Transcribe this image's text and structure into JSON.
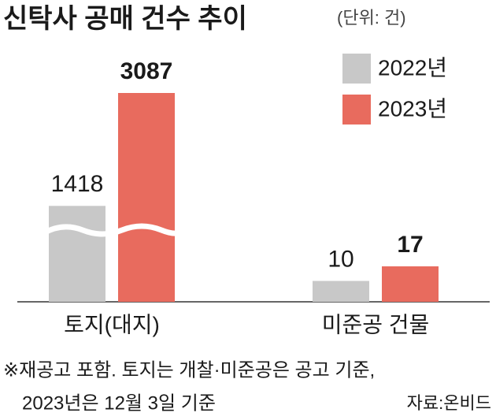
{
  "chart_data": {
    "type": "bar",
    "title": "신탁사 공매 건수 추이",
    "unit_note": "(단위: 건)",
    "categories": [
      "토지(대지)",
      "미준공 건물"
    ],
    "series": [
      {
        "name": "2022년",
        "color": "#c8c8c8",
        "values": [
          1418,
          10
        ]
      },
      {
        "name": "2023년",
        "color": "#e86b5e",
        "values": [
          3087,
          17
        ]
      }
    ],
    "legend": "top-right",
    "footnote": [
      "※재공고 포함. 토지는 개찰·미준공은 공고 기준,",
      "2023년은 12월 3일 기준"
    ],
    "source": "자료:온비드"
  }
}
